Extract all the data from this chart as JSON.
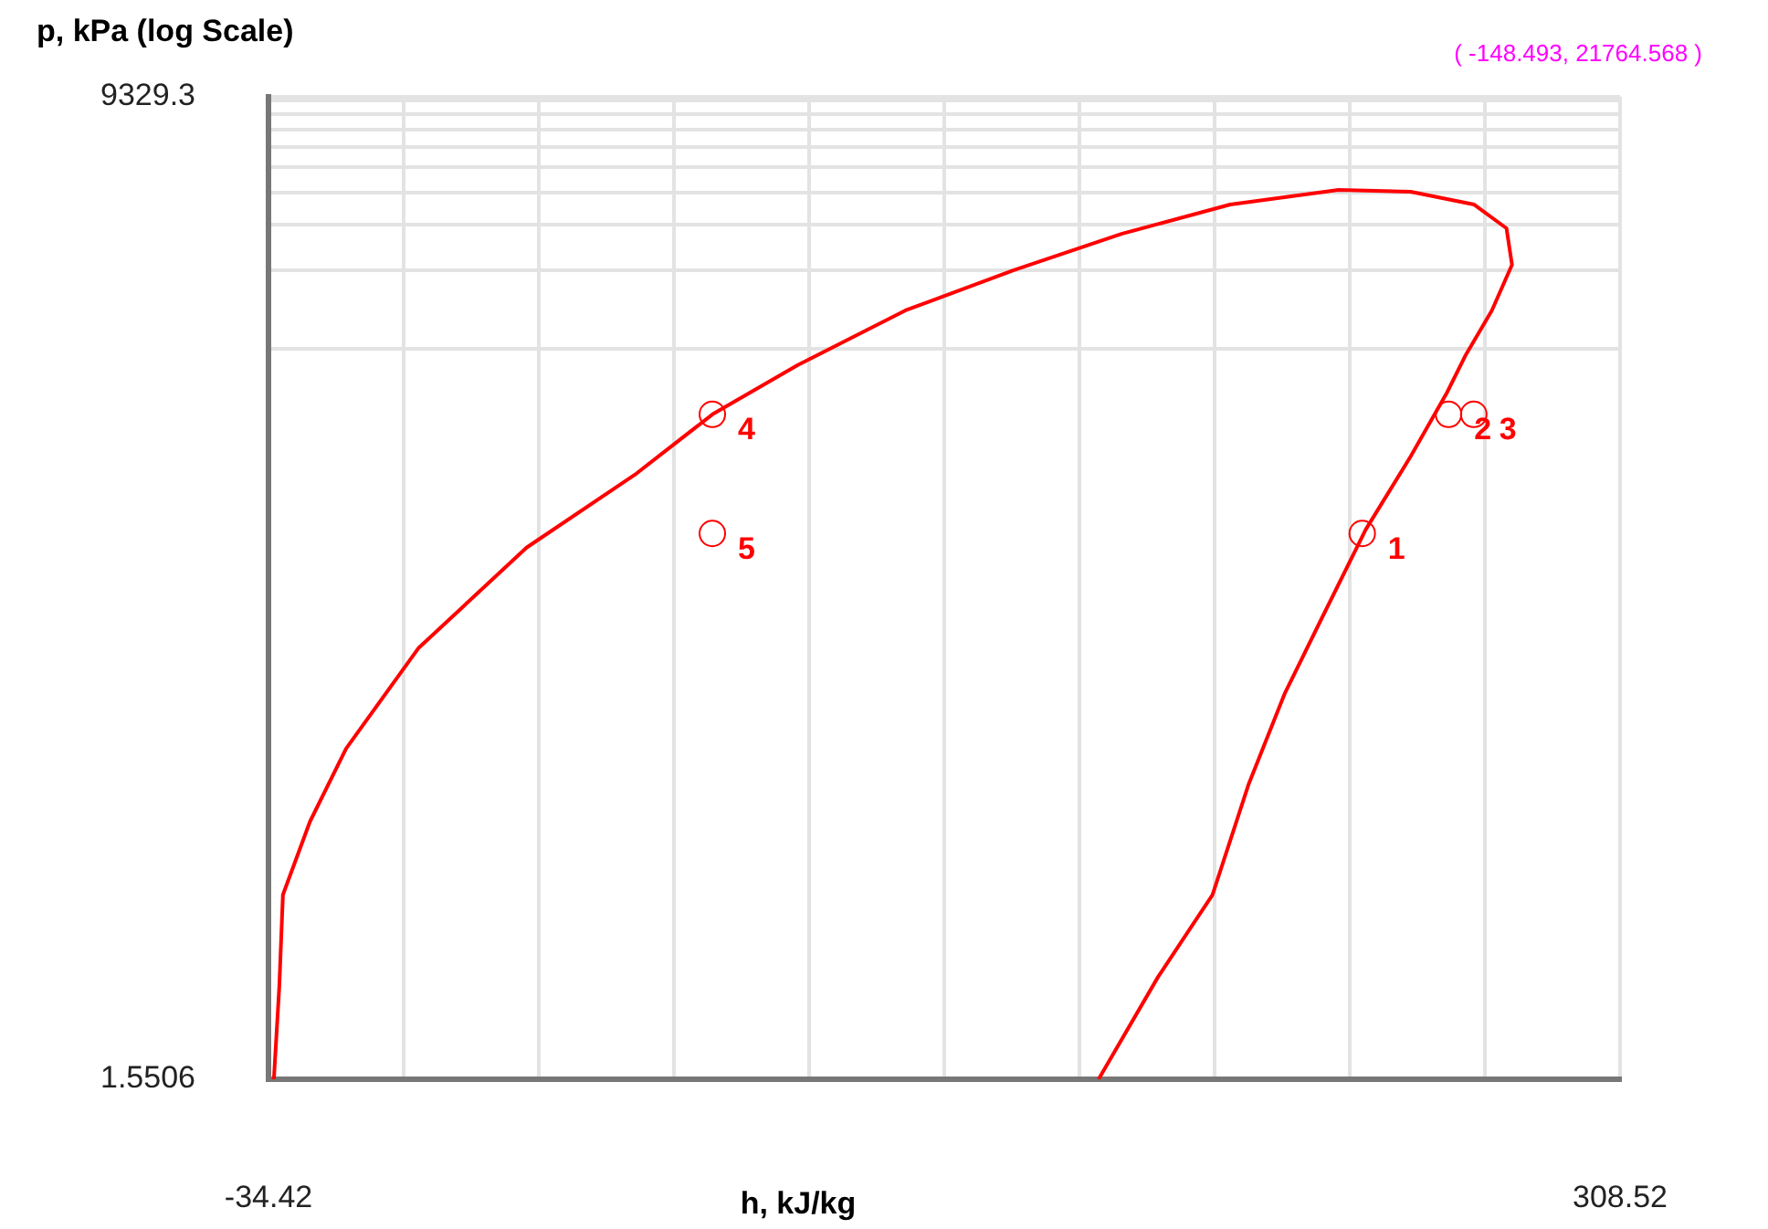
{
  "chart_data": {
    "type": "line",
    "xlabel": "h, kJ/kg",
    "ylabel": "p, kPa (log Scale)",
    "log": "y",
    "grid": true,
    "xlim": [
      -34.42,
      308.52
    ],
    "xticks": [
      -34.42,
      {
        "value": -0.126,
        "label": null
      },
      {
        "value": 34.168,
        "label": null
      },
      {
        "value": 68.462,
        "label": null
      },
      {
        "value": 102.756,
        "label": null
      },
      {
        "value": 137.05,
        "label": null
      },
      {
        "value": 171.344,
        "label": null
      },
      {
        "value": 205.638,
        "label": null
      },
      {
        "value": 239.932,
        "label": null
      },
      {
        "value": 274.226,
        "label": null
      },
      308.52
    ],
    "ylim": [
      1.5506,
      9329.3
    ],
    "yticks": [
      1.5506,
      {
        "value": 1000,
        "label": null
      },
      {
        "value": 2000,
        "label": null
      },
      {
        "value": 3000,
        "label": null
      },
      {
        "value": 4000,
        "label": null
      },
      {
        "value": 5000,
        "label": null
      },
      {
        "value": 6000,
        "label": null
      },
      {
        "value": 7000,
        "label": null
      },
      {
        "value": 8000,
        "label": null
      },
      {
        "value": 9000,
        "label": null
      },
      9329.3
    ],
    "series": [
      {
        "color": "#ff0000",
        "x": [
          -33.05,
          -31.67,
          -30.76,
          -23.89,
          -14.73,
          3.59,
          31.06,
          58.53,
          78.22,
          99.8,
          127.2,
          154.7,
          182.2,
          209.6,
          237.1,
          255.4,
          271.5,
          279.7,
          281.1,
          276.0,
          269.2,
          264.6,
          255.4,
          244.0,
          232.5,
          223.4,
          214.2,
          205.1,
          191.3,
          176.2
        ],
        "values": [
          1.5506,
          3.54,
          7.94,
          15.2,
          29.0,
          70.5,
          172,
          328,
          560,
          865,
          1406,
          2009,
          2775,
          3592,
          4090,
          4025,
          3592,
          2911,
          2107,
          1406,
          938,
          679,
          386,
          202,
          89.9,
          47.1,
          21.0,
          7.94,
          3.84,
          1.5506
        ]
      },
      {
        "type": "scatter",
        "marker": "circle",
        "color": "#ff0000",
        "x": [
          243.1,
          265.0,
          271.4,
          78.2,
          78.2
        ],
        "values": [
          195,
          560,
          560,
          560,
          195
        ]
      }
    ],
    "annotations": [
      "( -148.493, 21764.568 )",
      {
        "text": "1",
        "x": 243.1,
        "y": 195
      },
      {
        "text": "2",
        "x": 265.0,
        "y": 560
      },
      {
        "text": "3",
        "x": 271.4,
        "y": 560
      },
      {
        "text": "4",
        "x": 78.2,
        "y": 560
      },
      {
        "text": "5",
        "x": 78.2,
        "y": 195
      }
    ]
  }
}
